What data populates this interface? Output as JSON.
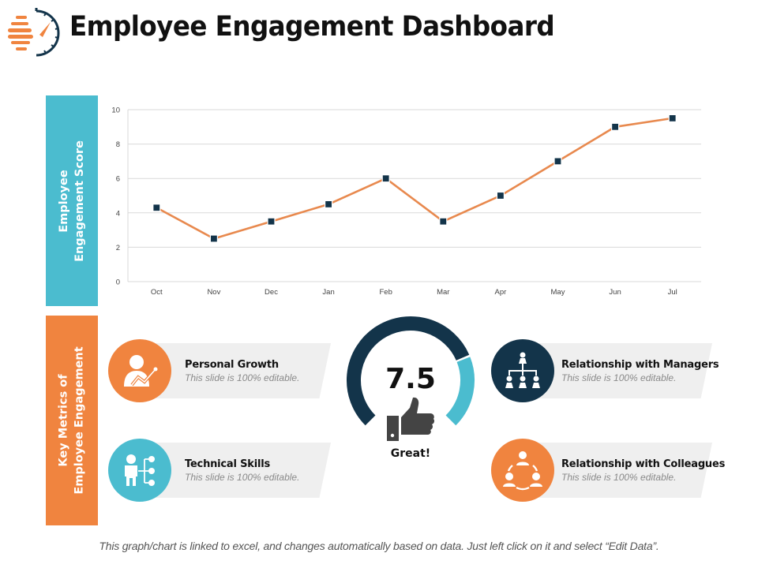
{
  "header": {
    "title": "Employee Engagement Dashboard",
    "logo_icon": "stopwatch-speed-icon"
  },
  "side_tabs": {
    "score": {
      "line1": "Employee",
      "line2": "Engagement Score"
    },
    "metrics": {
      "line1": "Key Metrics of",
      "line2": "Employee Engagement"
    }
  },
  "colors": {
    "teal": "#4bbccf",
    "orange": "#f0843f",
    "navy": "#13344a",
    "line": "#e8894e",
    "gray_band": "#efefef"
  },
  "chart_data": {
    "type": "line",
    "title": "",
    "xlabel": "",
    "ylabel": "Employee Engagement Score",
    "categories": [
      "Oct",
      "Nov",
      "Dec",
      "Jan",
      "Feb",
      "Mar",
      "Apr",
      "May",
      "Jun",
      "Jul"
    ],
    "series": [
      {
        "name": "Employee Engagement Score",
        "values": [
          4.3,
          2.5,
          3.5,
          4.5,
          6.0,
          3.5,
          5.0,
          7.0,
          9.0,
          9.5
        ]
      }
    ],
    "ylim": [
      0,
      10
    ],
    "yticks": [
      0,
      2,
      4,
      6,
      8,
      10
    ],
    "grid": true,
    "legend": "none",
    "line_color": "#e8894e",
    "marker_color": "#13344a"
  },
  "gauge": {
    "value": "7.5",
    "fraction": 0.75,
    "label": "Great!",
    "icon": "thumbs-up-icon"
  },
  "metrics": [
    {
      "title": "Personal Growth",
      "subtitle": "This slide is 100% editable.",
      "icon": "person-growth-icon",
      "color": "#f0843f"
    },
    {
      "title": "Technical Skills",
      "subtitle": "This slide is 100% editable.",
      "icon": "person-skills-tree-icon",
      "color": "#4bbccf"
    },
    {
      "title": "Relationship with Managers",
      "subtitle": "This slide is 100% editable.",
      "icon": "org-hierarchy-icon",
      "color": "#13344a"
    },
    {
      "title": "Relationship with Colleagues",
      "subtitle": "This slide is 100% editable.",
      "icon": "team-circle-icon",
      "color": "#f0843f"
    }
  ],
  "footnote": "This graph/chart is linked to excel, and changes automatically based on data. Just left click on it and select “Edit Data”."
}
